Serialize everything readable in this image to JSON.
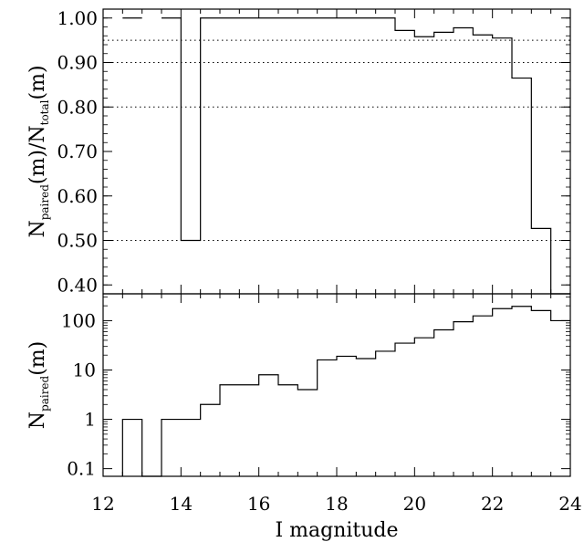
{
  "chart_data": [
    {
      "type": "line",
      "panel": "top",
      "ylabel_main": "N",
      "ylabel_sub1": "paired",
      "ylabel_mid": "(m)/N",
      "ylabel_sub2": "total",
      "ylabel_end": "(m)",
      "ylim": [
        0.38,
        1.02
      ],
      "xlim": [
        12,
        24
      ],
      "yticks": [
        "0.40",
        "0.50",
        "0.60",
        "0.70",
        "0.80",
        "0.90",
        "1.00"
      ],
      "ytick_values": [
        0.4,
        0.5,
        0.6,
        0.7,
        0.8,
        0.9,
        1.0
      ],
      "reference_lines": [
        0.5,
        0.8,
        0.9,
        0.95
      ],
      "reference_style": "dotted",
      "step_x": [
        12.5,
        13.0,
        13.0,
        13.5,
        14.0,
        14.5,
        15.0,
        15.5,
        16.0,
        16.5,
        17.0,
        17.5,
        18.0,
        18.5,
        19.0,
        19.5,
        20.0,
        20.5,
        21.0,
        21.5,
        22.0,
        22.5,
        23.0,
        23.5
      ],
      "bins": [
        [
          12.5,
          13.0,
          1.0
        ],
        [
          13.5,
          14.0,
          1.0
        ],
        [
          14.0,
          14.5,
          0.5
        ],
        [
          14.5,
          19.5,
          1.0
        ],
        [
          19.5,
          20.0,
          0.972
        ],
        [
          20.0,
          20.5,
          0.958
        ],
        [
          20.5,
          21.0,
          0.968
        ],
        [
          21.0,
          21.5,
          0.978
        ],
        [
          21.5,
          22.0,
          0.962
        ],
        [
          22.0,
          22.5,
          0.955
        ],
        [
          22.5,
          23.0,
          0.865
        ],
        [
          23.0,
          23.5,
          0.527
        ],
        [
          23.5,
          24.0,
          0.3
        ]
      ]
    },
    {
      "type": "line",
      "panel": "bottom",
      "ylabel_main": "N",
      "ylabel_sub": "paired",
      "ylabel_end": "(m)",
      "yscale": "log",
      "ylim": [
        0.07,
        350
      ],
      "yticks": [
        "0.1",
        "1",
        "10",
        "100"
      ],
      "ytick_values": [
        0.1,
        1,
        10,
        100
      ],
      "xlim": [
        12,
        24
      ],
      "xticks": [
        "12",
        "14",
        "16",
        "18",
        "20",
        "22",
        "24"
      ],
      "xtick_values": [
        12,
        14,
        16,
        18,
        20,
        22,
        24
      ],
      "xlabel": "I magnitude",
      "bins": [
        [
          12.5,
          13.0,
          1
        ],
        [
          13.5,
          14.0,
          1
        ],
        [
          14.0,
          14.5,
          1
        ],
        [
          14.5,
          15.0,
          2
        ],
        [
          15.0,
          15.5,
          5
        ],
        [
          15.5,
          16.0,
          5
        ],
        [
          16.0,
          16.5,
          8
        ],
        [
          16.5,
          17.0,
          5
        ],
        [
          17.0,
          17.5,
          4
        ],
        [
          17.5,
          18.0,
          16
        ],
        [
          18.0,
          18.5,
          19
        ],
        [
          18.5,
          19.0,
          17
        ],
        [
          19.0,
          19.5,
          24
        ],
        [
          19.5,
          20.0,
          35
        ],
        [
          20.0,
          20.5,
          45
        ],
        [
          20.5,
          21.0,
          65
        ],
        [
          21.0,
          21.5,
          95
        ],
        [
          21.5,
          22.0,
          125
        ],
        [
          22.0,
          22.5,
          175
        ],
        [
          22.5,
          23.0,
          195
        ],
        [
          23.0,
          23.5,
          160
        ],
        [
          23.5,
          24.0,
          100
        ]
      ]
    }
  ]
}
